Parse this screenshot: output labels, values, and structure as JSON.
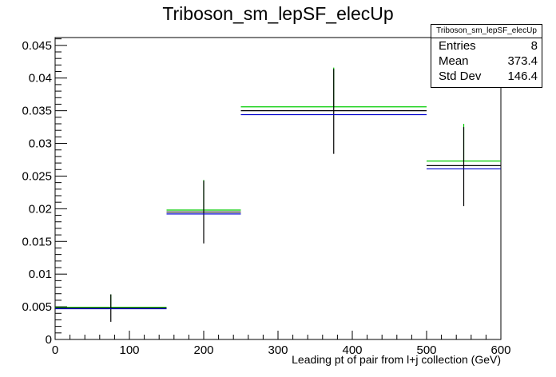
{
  "chart_data": {
    "type": "histogram",
    "title": "Triboson_sm_lepSF_elecUp",
    "xlabel": "Leading pt of pair from l+j collection (GeV)",
    "ylabel": "",
    "xlim": [
      0,
      600
    ],
    "ylim": [
      0,
      0.0462
    ],
    "xticks": [
      0,
      100,
      200,
      300,
      400,
      500,
      600
    ],
    "xtick_labels": [
      "0",
      "100",
      "200",
      "300",
      "400",
      "500",
      "600"
    ],
    "yticks": [
      0,
      0.005,
      0.01,
      0.015,
      0.02,
      0.025,
      0.03,
      0.035,
      0.04,
      0.045
    ],
    "ytick_labels": [
      "0",
      "0.005",
      "0.01",
      "0.015",
      "0.02",
      "0.025",
      "0.03",
      "0.035",
      "0.04",
      "0.045"
    ],
    "grid": false,
    "bins": [
      {
        "x_low": 0,
        "x_high": 150,
        "x_center": 75
      },
      {
        "x_low": 150,
        "x_high": 250,
        "x_center": 200
      },
      {
        "x_low": 250,
        "x_high": 500,
        "x_center": 375
      },
      {
        "x_low": 500,
        "x_high": 600,
        "x_center": 550
      }
    ],
    "series": [
      {
        "color": "#00cc00",
        "values": [
          0.0049,
          0.0198,
          0.0356,
          0.0273
        ],
        "err_up": [
          0.002,
          0.0046,
          0.006,
          0.0057
        ]
      },
      {
        "color": "#000000",
        "values": [
          0.0048,
          0.0195,
          0.035,
          0.0266
        ],
        "err_up": [
          0.0021,
          0.0048,
          0.0064,
          0.0059
        ],
        "err_low": [
          0.0021,
          0.0048,
          0.0066,
          0.0062
        ]
      },
      {
        "color": "#0000cc",
        "values": [
          0.0047,
          0.0192,
          0.0344,
          0.0261
        ]
      }
    ],
    "stats_box": {
      "title": "Triboson_sm_lepSF_elecUp",
      "entries_label": "Entries",
      "entries": "8",
      "mean_label": "Mean",
      "mean": "373.4",
      "stddev_label": "Std Dev",
      "stddev": "146.4"
    }
  }
}
